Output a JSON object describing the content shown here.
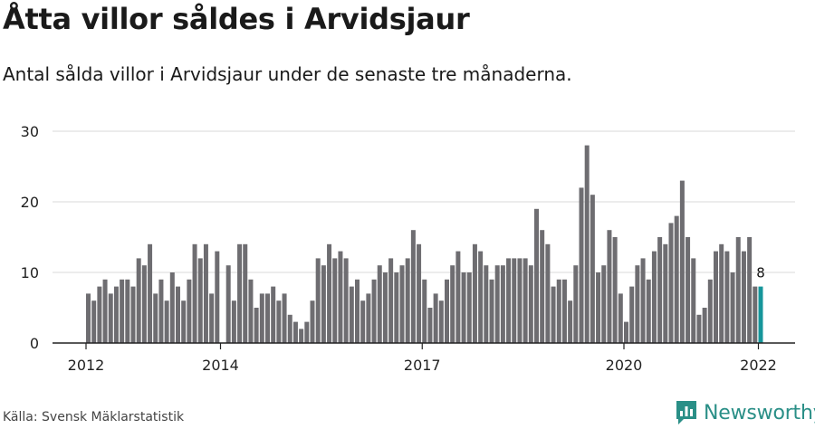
{
  "header": {
    "title": "Åtta villor såldes i Arvidsjaur",
    "subtitle": "Antal sålda villor i Arvidsjaur under de senaste tre månaderna."
  },
  "footer": {
    "source": "Källa: Svensk Mäklarstatistik",
    "brand": "Newsworthy",
    "brand_icon": "newsworthy-logo-icon"
  },
  "colors": {
    "bar": "#6e6d71",
    "highlight": "#16969b",
    "brand": "#2a8f87"
  },
  "chart_data": {
    "type": "bar",
    "title": "Åtta villor såldes i Arvidsjaur",
    "subtitle": "Antal sålda villor i Arvidsjaur under de senaste tre månaderna.",
    "xlabel": "",
    "ylabel": "",
    "ylim": [
      0,
      30
    ],
    "yticks": [
      0,
      10,
      20,
      30
    ],
    "x_range": [
      2012.0,
      2022.0
    ],
    "xticks": [
      2012,
      2014,
      2017,
      2020,
      2022
    ],
    "grid": true,
    "legend": "none",
    "x_start": "2012-01",
    "x_step": "month",
    "values": [
      7,
      6,
      8,
      9,
      7,
      8,
      9,
      9,
      8,
      12,
      11,
      14,
      7,
      9,
      6,
      10,
      8,
      6,
      9,
      14,
      12,
      14,
      7,
      13,
      0,
      11,
      6,
      14,
      14,
      9,
      5,
      7,
      7,
      8,
      6,
      7,
      4,
      3,
      2,
      3,
      6,
      12,
      11,
      14,
      12,
      13,
      12,
      8,
      9,
      6,
      7,
      9,
      11,
      10,
      12,
      10,
      11,
      12,
      16,
      14,
      9,
      5,
      7,
      6,
      9,
      11,
      13,
      10,
      10,
      14,
      13,
      11,
      9,
      11,
      11,
      12,
      12,
      12,
      12,
      11,
      19,
      16,
      14,
      8,
      9,
      9,
      6,
      11,
      22,
      28,
      21,
      10,
      11,
      16,
      15,
      7,
      3,
      8,
      11,
      12,
      9,
      13,
      15,
      14,
      17,
      18,
      23,
      15,
      12,
      4,
      5,
      9,
      13,
      14,
      13,
      10,
      15,
      13,
      15,
      8,
      8
    ],
    "annotations": [
      {
        "index": 120,
        "label": "8"
      }
    ]
  }
}
